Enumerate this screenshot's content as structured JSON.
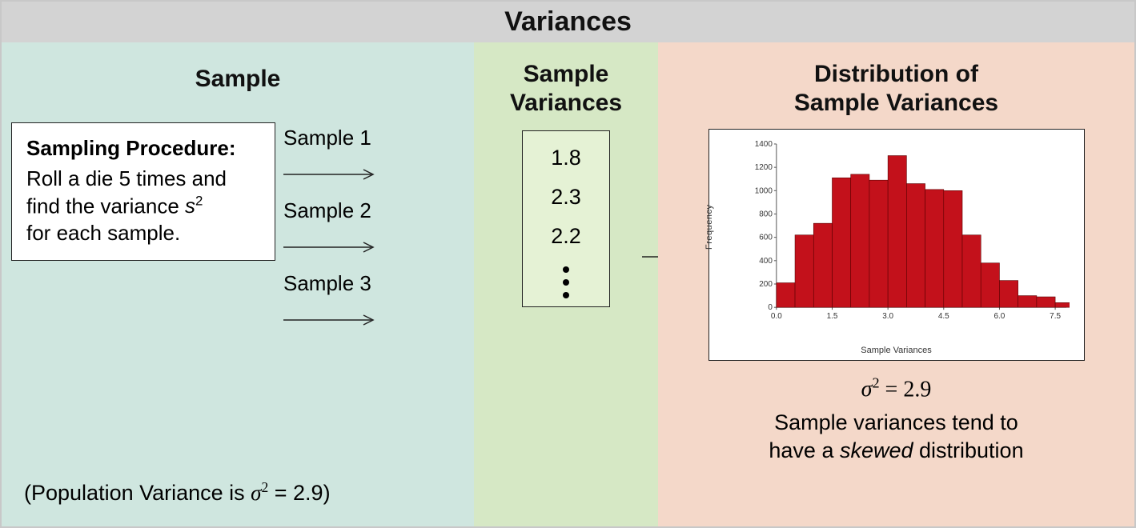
{
  "title": "Variances",
  "panels": {
    "left": {
      "title": "Sample",
      "background_color": "#cfe6df",
      "procedure": {
        "heading": "Sampling Procedure:",
        "body_line1": "Roll a die 5 times and",
        "body_line2_prefix": "find the variance ",
        "body_line2_var": "s",
        "body_line3": "for each sample.",
        "box_bg": "#ffffff",
        "box_border": "#222222"
      },
      "sample_labels": [
        "Sample 1",
        "Sample 2",
        "Sample 3"
      ],
      "population_variance_text_prefix": "(Population Variance is ",
      "population_variance_symbol": "σ",
      "population_variance_value": " = 2.9)",
      "arrow_color": "#222222"
    },
    "middle": {
      "title_line1": "Sample",
      "title_line2": "Variances",
      "background_color": "#d6e8c5",
      "box_bg": "#e5f2d5",
      "box_border": "#222222",
      "values": [
        "1.8",
        "2.3",
        "2.2"
      ],
      "dots": 3,
      "arrow_color": "#222222"
    },
    "right": {
      "title_line1": "Distribution of",
      "title_line2": "Sample Variances",
      "background_color": "#f4d8c9",
      "histogram": {
        "type": "histogram",
        "frame_bg": "#ffffff",
        "frame_border": "#222222",
        "bar_color": "#c3111b",
        "bar_border": "#5a0000",
        "axis_color": "#555555",
        "ylabel": "Frequency",
        "xlabel": "Sample Variances",
        "xlim": [
          0.0,
          7.8
        ],
        "ylim": [
          0,
          1400
        ],
        "xticks": [
          0.0,
          1.5,
          3.0,
          4.5,
          6.0,
          7.5
        ],
        "xtick_labels": [
          "0.0",
          "1.5",
          "3.0",
          "4.5",
          "6.0",
          "7.5"
        ],
        "yticks": [
          0,
          200,
          400,
          600,
          800,
          1000,
          1200,
          1400
        ],
        "ytick_labels": [
          "0",
          "200",
          "400",
          "600",
          "800",
          "1000",
          "1200",
          "1400"
        ],
        "bin_width": 0.5,
        "bins_start": [
          0.0,
          0.5,
          1.0,
          1.5,
          2.0,
          2.5,
          3.0,
          3.5,
          4.0,
          4.5,
          5.0,
          5.5,
          6.0,
          6.5,
          7.0,
          7.5
        ],
        "heights": [
          210,
          620,
          720,
          1110,
          1140,
          1090,
          1300,
          1060,
          1010,
          1000,
          620,
          380,
          230,
          100,
          90,
          40
        ],
        "ylabel_fontsize": 11,
        "xlabel_fontsize": 11,
        "tick_fontsize": 10
      },
      "caption_eq_symbol": "σ",
      "caption_eq_value": " = 2.9",
      "caption_note_line1": "Sample variances tend to",
      "caption_note_line2_prefix": "have a ",
      "caption_note_emph": "skewed",
      "caption_note_line2_suffix": " distribution"
    }
  }
}
